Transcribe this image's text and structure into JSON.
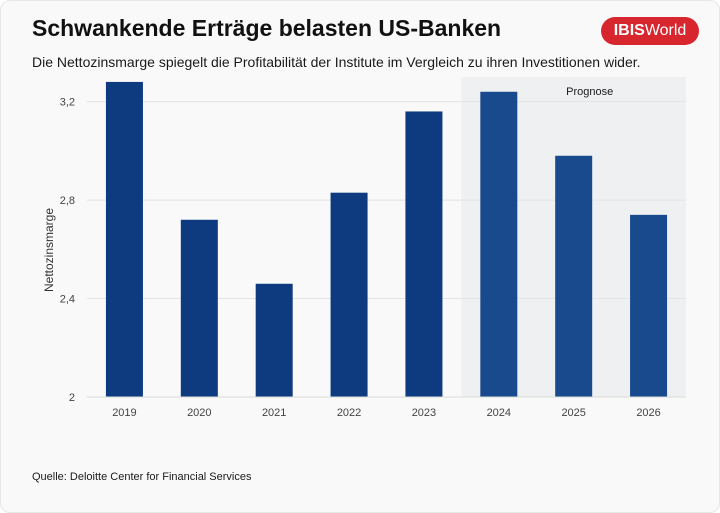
{
  "header": {
    "title": "Schwankende Erträge belasten US-Banken",
    "subtitle": "Die Nettozinsmarge spiegelt die Profitabilität der Institute im Vergleich zu ihren Investitionen wider."
  },
  "logo": {
    "part1": "IBIS",
    "part2": "World",
    "color": "#d7262e"
  },
  "source": "Quelle: Deloitte Center for Financial Services",
  "chart_data": {
    "type": "bar",
    "title": "",
    "xlabel": "",
    "ylabel": "Nettozinsmarge",
    "categories": [
      "2019",
      "2020",
      "2021",
      "2022",
      "2023",
      "2024",
      "2025",
      "2026"
    ],
    "values": [
      3.28,
      2.72,
      2.46,
      2.83,
      3.16,
      3.24,
      2.98,
      2.74
    ],
    "ylim": [
      2,
      3.3
    ],
    "yticks": [
      2,
      2.4,
      2.8,
      3.2
    ],
    "ytick_labels": [
      "2",
      "2,4",
      "2,8",
      "3,2"
    ],
    "grid": true,
    "forecast": {
      "label": "Prognose",
      "from_category": "2024"
    },
    "colors": {
      "actual": "#0e3a80",
      "forecast": "#1a4a8e",
      "forecast_bg": "#eff0f1",
      "grid": "#e2e5e2"
    }
  }
}
